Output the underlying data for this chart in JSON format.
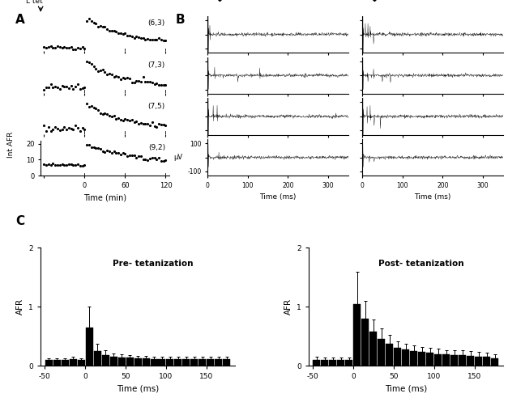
{
  "panel_A_labels": [
    "(6,3)",
    "(7,3)",
    "(7,5)",
    "(9,2)"
  ],
  "panel_A_ylabel": "Int AFR",
  "panel_A_xlabel": "Time (min)",
  "panel_B_xlabel": "Time (ms)",
  "panel_B_ylabel": "μV",
  "panel_C_pre_title": "Pre- tetanization",
  "panel_C_post_title": "Post- tetanization",
  "panel_C_xlabel": "Time (ms)",
  "panel_C_ylabel": "AFR",
  "pre_bins": [
    -50,
    -40,
    -30,
    -20,
    -10,
    0,
    10,
    20,
    30,
    40,
    50,
    60,
    70,
    80,
    90,
    100,
    110,
    120,
    130,
    140,
    150,
    160,
    170
  ],
  "pre_values": [
    0.1,
    0.1,
    0.1,
    0.12,
    0.1,
    0.65,
    0.25,
    0.18,
    0.15,
    0.14,
    0.14,
    0.13,
    0.13,
    0.12,
    0.12,
    0.12,
    0.12,
    0.12,
    0.12,
    0.12,
    0.12,
    0.12,
    0.12
  ],
  "pre_errors": [
    0.03,
    0.03,
    0.03,
    0.03,
    0.03,
    0.35,
    0.12,
    0.08,
    0.06,
    0.05,
    0.04,
    0.04,
    0.04,
    0.04,
    0.04,
    0.04,
    0.04,
    0.04,
    0.04,
    0.04,
    0.04,
    0.04,
    0.04
  ],
  "post_bins": [
    -50,
    -40,
    -30,
    -20,
    -10,
    0,
    10,
    20,
    30,
    40,
    50,
    60,
    70,
    80,
    90,
    100,
    110,
    120,
    130,
    140,
    150,
    160,
    170
  ],
  "post_values": [
    0.1,
    0.1,
    0.1,
    0.1,
    0.1,
    1.05,
    0.8,
    0.58,
    0.45,
    0.38,
    0.3,
    0.28,
    0.25,
    0.23,
    0.22,
    0.2,
    0.19,
    0.18,
    0.18,
    0.17,
    0.16,
    0.15,
    0.13
  ],
  "post_errors": [
    0.05,
    0.04,
    0.04,
    0.04,
    0.04,
    0.55,
    0.3,
    0.2,
    0.18,
    0.15,
    0.12,
    0.1,
    0.1,
    0.09,
    0.09,
    0.09,
    0.08,
    0.08,
    0.08,
    0.08,
    0.07,
    0.07,
    0.06
  ],
  "bar_color": "black",
  "line_color": "black",
  "bg_color": "white",
  "label_A": "A",
  "label_B": "B",
  "label_C": "C",
  "ltet_label": "L tet"
}
